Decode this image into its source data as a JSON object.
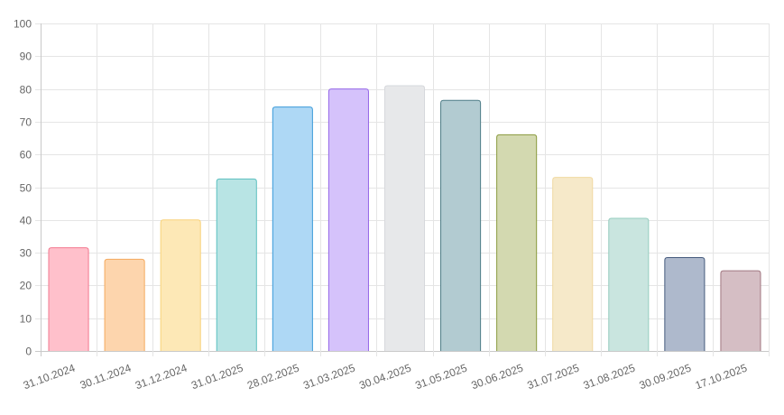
{
  "chart_data": {
    "type": "bar",
    "title": "",
    "xlabel": "",
    "ylabel": "",
    "ylim": [
      0,
      100
    ],
    "ytick_step": 10,
    "grid": true,
    "legend": "none",
    "categories": [
      "31.10.2024",
      "30.11.2024",
      "31.12.2024",
      "31.01.2025",
      "28.02.2025",
      "31.03.2025",
      "30.04.2025",
      "31.05.2025",
      "30.06.2025",
      "31.07.2025",
      "31.08.2025",
      "30.09.2025",
      "17.10.2025"
    ],
    "values": [
      31.5,
      28,
      40,
      52.5,
      74.5,
      80,
      81,
      76.5,
      66,
      53,
      40.5,
      28.5,
      24.5
    ],
    "bar_fills": [
      "#ffc0cb",
      "#fdd5ad",
      "#fde8b6",
      "#b8e4e4",
      "#aed8f5",
      "#d5c2fb",
      "#e7e8ea",
      "#b2cbd1",
      "#d3d9b0",
      "#f6e9c9",
      "#c9e5df",
      "#aeb9cc",
      "#d5bec4"
    ],
    "bar_borders": [
      "#f2788f",
      "#f4a95e",
      "#f8d27a",
      "#5cc0c0",
      "#3a9ad9",
      "#9466e8",
      "#d6d8dc",
      "#4e7d87",
      "#8a9a3e",
      "#f0d9a1",
      "#95cdbf",
      "#455a7d",
      "#a17781"
    ]
  }
}
